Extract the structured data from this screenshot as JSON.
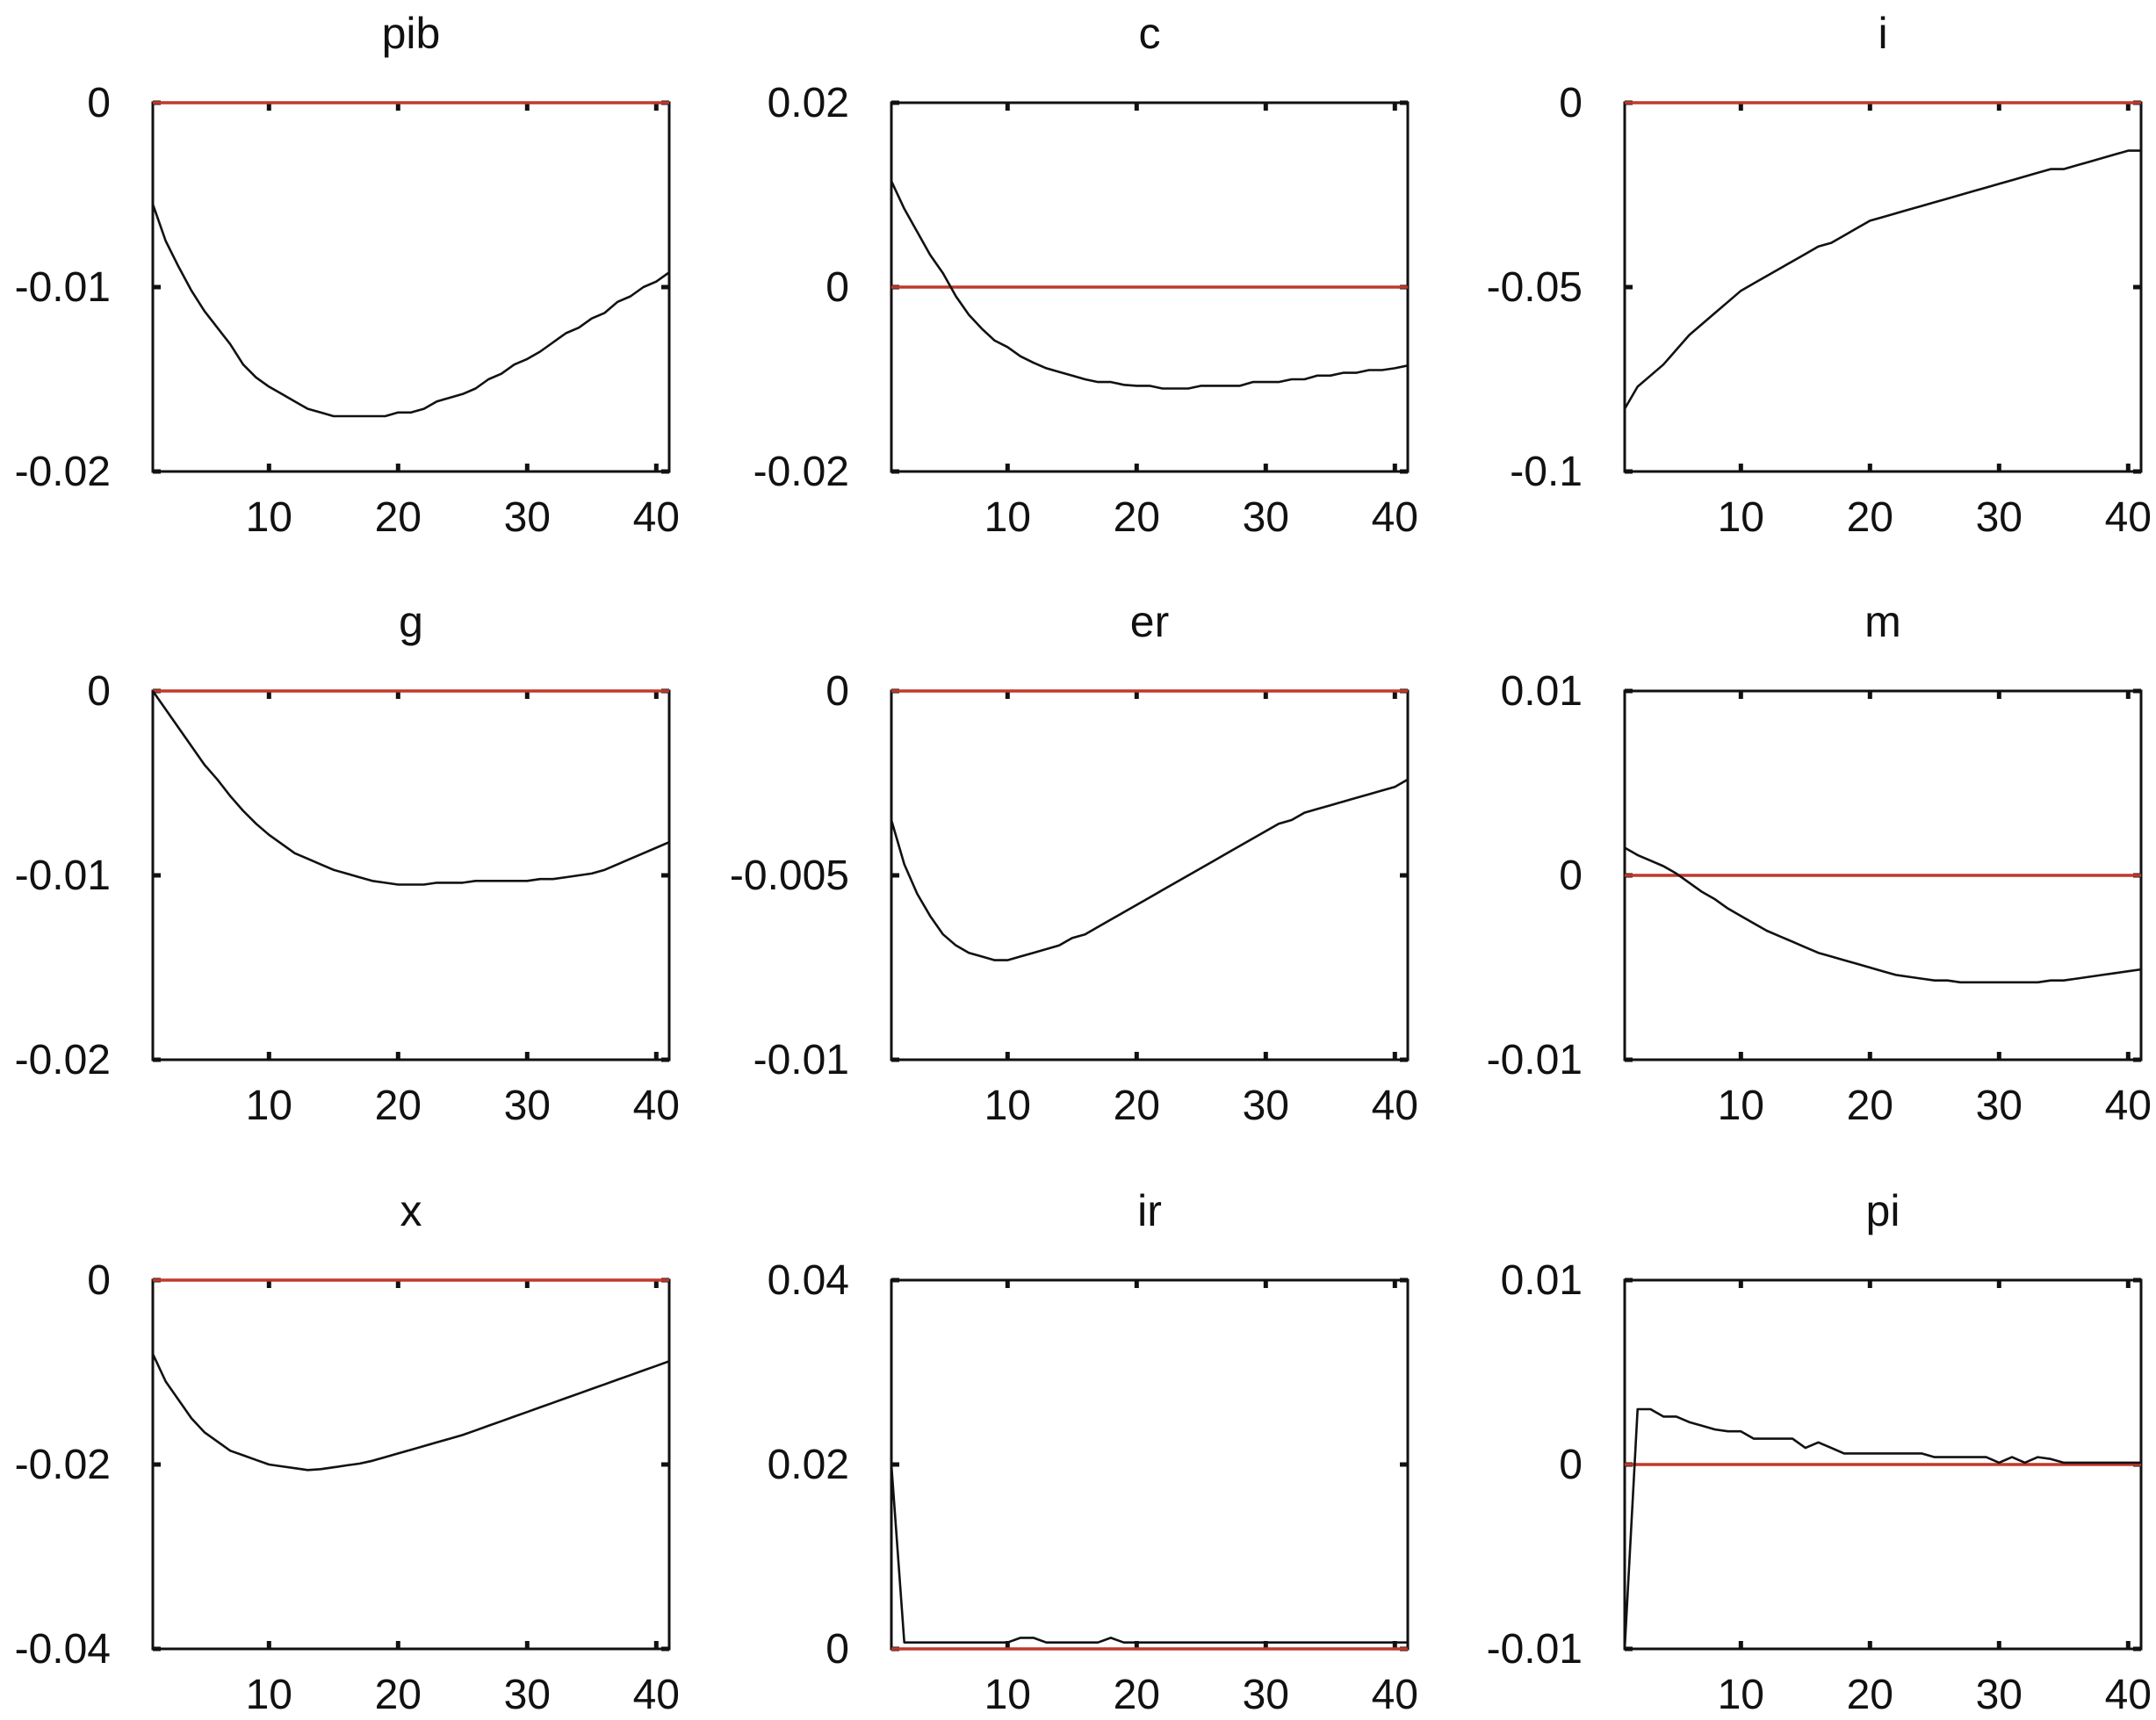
{
  "figure": {
    "zero_line_color": "#c0392b",
    "series_color": "#111111",
    "axis_color": "#111111"
  },
  "chart_data": [
    {
      "type": "line",
      "title": "pib",
      "xlim": [
        1,
        41
      ],
      "ylim": [
        -0.02,
        0
      ],
      "xticks": [
        10,
        20,
        30,
        40
      ],
      "xtick_labels": [
        "10",
        "20",
        "30",
        "40"
      ],
      "yticks": [
        0,
        -0.01,
        -0.02
      ],
      "ytick_labels": [
        "0",
        "-0.01",
        "-0.02"
      ],
      "zero_line": 0,
      "grid": false,
      "series": [
        {
          "x": [
            1,
            2,
            3,
            4,
            5,
            6,
            7,
            8,
            9,
            10,
            11,
            12,
            13,
            14,
            15,
            16,
            17,
            18,
            19,
            20,
            21,
            22,
            23,
            24,
            25,
            26,
            27,
            28,
            29,
            30,
            31,
            32,
            33,
            34,
            35,
            36,
            37,
            38,
            39,
            40,
            41
          ],
          "y": [
            -0.0055,
            -0.0075,
            -0.0089,
            -0.0102,
            -0.0113,
            -0.0122,
            -0.0131,
            -0.0142,
            -0.0149,
            -0.0154,
            -0.0158,
            -0.0162,
            -0.0166,
            -0.0168,
            -0.017,
            -0.017,
            -0.017,
            -0.017,
            -0.017,
            -0.0168,
            -0.0168,
            -0.0166,
            -0.0162,
            -0.016,
            -0.0158,
            -0.0155,
            -0.015,
            -0.0147,
            -0.0142,
            -0.0139,
            -0.0135,
            -0.013,
            -0.0125,
            -0.0122,
            -0.0117,
            -0.0114,
            -0.0108,
            -0.0105,
            -0.01,
            -0.0097,
            -0.0092
          ]
        }
      ]
    },
    {
      "type": "line",
      "title": "c",
      "xlim": [
        1,
        41
      ],
      "ylim": [
        -0.02,
        0.02
      ],
      "xticks": [
        10,
        20,
        30,
        40
      ],
      "xtick_labels": [
        "10",
        "20",
        "30",
        "40"
      ],
      "yticks": [
        0.02,
        0,
        -0.02
      ],
      "ytick_labels": [
        "0.02",
        "0",
        "-0.02"
      ],
      "zero_line": 0,
      "grid": false,
      "series": [
        {
          "x": [
            1,
            2,
            3,
            4,
            5,
            6,
            7,
            8,
            9,
            10,
            11,
            12,
            13,
            14,
            15,
            16,
            17,
            18,
            19,
            20,
            21,
            22,
            23,
            24,
            25,
            26,
            27,
            28,
            29,
            30,
            31,
            32,
            33,
            34,
            35,
            36,
            37,
            38,
            39,
            40,
            41
          ],
          "y": [
            0.0115,
            0.0085,
            0.006,
            0.0035,
            0.0015,
            -0.001,
            -0.003,
            -0.0045,
            -0.0058,
            -0.0065,
            -0.0075,
            -0.0082,
            -0.0088,
            -0.0092,
            -0.0096,
            -0.01,
            -0.0103,
            -0.0103,
            -0.0106,
            -0.0107,
            -0.0107,
            -0.011,
            -0.011,
            -0.011,
            -0.0107,
            -0.0107,
            -0.0107,
            -0.0107,
            -0.0103,
            -0.0103,
            -0.0103,
            -0.01,
            -0.01,
            -0.0096,
            -0.0096,
            -0.0093,
            -0.0093,
            -0.009,
            -0.009,
            -0.0088,
            -0.0085
          ]
        }
      ]
    },
    {
      "type": "line",
      "title": "i",
      "xlim": [
        1,
        41
      ],
      "ylim": [
        -0.1,
        0
      ],
      "xticks": [
        10,
        20,
        30,
        40
      ],
      "xtick_labels": [
        "10",
        "20",
        "30",
        "40"
      ],
      "yticks": [
        0,
        -0.05,
        -0.1
      ],
      "ytick_labels": [
        "0",
        "-0.05",
        "-0.1"
      ],
      "zero_line": 0,
      "grid": false,
      "series": [
        {
          "x": [
            1,
            2,
            3,
            4,
            5,
            6,
            7,
            8,
            9,
            10,
            11,
            12,
            13,
            14,
            15,
            16,
            17,
            18,
            19,
            20,
            21,
            22,
            23,
            24,
            25,
            26,
            27,
            28,
            29,
            30,
            31,
            32,
            33,
            34,
            35,
            36,
            37,
            38,
            39,
            40,
            41
          ],
          "y": [
            -0.083,
            -0.077,
            -0.074,
            -0.071,
            -0.067,
            -0.063,
            -0.06,
            -0.057,
            -0.054,
            -0.051,
            -0.049,
            -0.047,
            -0.045,
            -0.043,
            -0.041,
            -0.039,
            -0.038,
            -0.036,
            -0.034,
            -0.032,
            -0.031,
            -0.03,
            -0.029,
            -0.028,
            -0.027,
            -0.026,
            -0.025,
            -0.024,
            -0.023,
            -0.022,
            -0.021,
            -0.02,
            -0.019,
            -0.018,
            -0.018,
            -0.017,
            -0.016,
            -0.015,
            -0.014,
            -0.013,
            -0.013
          ]
        }
      ]
    },
    {
      "type": "line",
      "title": "g",
      "xlim": [
        1,
        41
      ],
      "ylim": [
        -0.02,
        0
      ],
      "xticks": [
        10,
        20,
        30,
        40
      ],
      "xtick_labels": [
        "10",
        "20",
        "30",
        "40"
      ],
      "yticks": [
        0,
        -0.01,
        -0.02
      ],
      "ytick_labels": [
        "0",
        "-0.01",
        "-0.02"
      ],
      "zero_line": 0,
      "grid": false,
      "series": [
        {
          "x": [
            1,
            2,
            3,
            4,
            5,
            6,
            7,
            8,
            9,
            10,
            11,
            12,
            13,
            14,
            15,
            16,
            17,
            18,
            19,
            20,
            21,
            22,
            23,
            24,
            25,
            26,
            27,
            28,
            29,
            30,
            31,
            32,
            33,
            34,
            35,
            36,
            37,
            38,
            39,
            40,
            41
          ],
          "y": [
            0,
            -0.001,
            -0.002,
            -0.003,
            -0.004,
            -0.0048,
            -0.0057,
            -0.0065,
            -0.0072,
            -0.0078,
            -0.0083,
            -0.0088,
            -0.0091,
            -0.0094,
            -0.0097,
            -0.0099,
            -0.0101,
            -0.0103,
            -0.0104,
            -0.0105,
            -0.0105,
            -0.0105,
            -0.0104,
            -0.0104,
            -0.0104,
            -0.0103,
            -0.0103,
            -0.0103,
            -0.0103,
            -0.0103,
            -0.0102,
            -0.0102,
            -0.0101,
            -0.01,
            -0.0099,
            -0.0097,
            -0.0094,
            -0.0091,
            -0.0088,
            -0.0085,
            -0.0082
          ]
        }
      ]
    },
    {
      "type": "line",
      "title": "er",
      "xlim": [
        1,
        41
      ],
      "ylim": [
        -0.01,
        0
      ],
      "xticks": [
        10,
        20,
        30,
        40
      ],
      "xtick_labels": [
        "10",
        "20",
        "30",
        "40"
      ],
      "yticks": [
        0,
        -0.005,
        -0.01
      ],
      "ytick_labels": [
        "0",
        "-0.005",
        "-0.01"
      ],
      "zero_line": 0,
      "grid": false,
      "series": [
        {
          "x": [
            1,
            2,
            3,
            4,
            5,
            6,
            7,
            8,
            9,
            10,
            11,
            12,
            13,
            14,
            15,
            16,
            17,
            18,
            19,
            20,
            21,
            22,
            23,
            24,
            25,
            26,
            27,
            28,
            29,
            30,
            31,
            32,
            33,
            34,
            35,
            36,
            37,
            38,
            39,
            40,
            41
          ],
          "y": [
            -0.0035,
            -0.0047,
            -0.0055,
            -0.0061,
            -0.0066,
            -0.0069,
            -0.0071,
            -0.0072,
            -0.0073,
            -0.0073,
            -0.0072,
            -0.0071,
            -0.007,
            -0.0069,
            -0.0067,
            -0.0066,
            -0.0064,
            -0.0062,
            -0.006,
            -0.0058,
            -0.0056,
            -0.0054,
            -0.0052,
            -0.005,
            -0.0048,
            -0.0046,
            -0.0044,
            -0.0042,
            -0.004,
            -0.0038,
            -0.0036,
            -0.0035,
            -0.0033,
            -0.0032,
            -0.0031,
            -0.003,
            -0.0029,
            -0.0028,
            -0.0027,
            -0.0026,
            -0.0024
          ]
        }
      ]
    },
    {
      "type": "line",
      "title": "m",
      "xlim": [
        1,
        41
      ],
      "ylim": [
        -0.01,
        0.01
      ],
      "xticks": [
        10,
        20,
        30,
        40
      ],
      "xtick_labels": [
        "10",
        "20",
        "30",
        "40"
      ],
      "yticks": [
        0.01,
        0,
        -0.01
      ],
      "ytick_labels": [
        "0.01",
        "0",
        "-0.01"
      ],
      "zero_line": 0,
      "grid": false,
      "series": [
        {
          "x": [
            1,
            2,
            3,
            4,
            5,
            6,
            7,
            8,
            9,
            10,
            11,
            12,
            13,
            14,
            15,
            16,
            17,
            18,
            19,
            20,
            21,
            22,
            23,
            24,
            25,
            26,
            27,
            28,
            29,
            30,
            31,
            32,
            33,
            34,
            35,
            36,
            37,
            38,
            39,
            40,
            41
          ],
          "y": [
            0.0015,
            0.0011,
            0.0008,
            0.0005,
            0.0001,
            -0.0004,
            -0.0009,
            -0.0013,
            -0.0018,
            -0.0022,
            -0.0026,
            -0.003,
            -0.0033,
            -0.0036,
            -0.0039,
            -0.0042,
            -0.0044,
            -0.0046,
            -0.0048,
            -0.005,
            -0.0052,
            -0.0054,
            -0.0055,
            -0.0056,
            -0.0057,
            -0.0057,
            -0.0058,
            -0.0058,
            -0.0058,
            -0.0058,
            -0.0058,
            -0.0058,
            -0.0058,
            -0.0057,
            -0.0057,
            -0.0056,
            -0.0055,
            -0.0054,
            -0.0053,
            -0.0052,
            -0.0051
          ]
        }
      ]
    },
    {
      "type": "line",
      "title": "x",
      "xlim": [
        1,
        41
      ],
      "ylim": [
        -0.04,
        0
      ],
      "xticks": [
        10,
        20,
        30,
        40
      ],
      "xtick_labels": [
        "10",
        "20",
        "30",
        "40"
      ],
      "yticks": [
        0,
        -0.02,
        -0.04
      ],
      "ytick_labels": [
        "0",
        "-0.02",
        "-0.04"
      ],
      "zero_line": 0,
      "grid": false,
      "series": [
        {
          "x": [
            1,
            2,
            3,
            4,
            5,
            6,
            7,
            8,
            9,
            10,
            11,
            12,
            13,
            14,
            15,
            16,
            17,
            18,
            19,
            20,
            21,
            22,
            23,
            24,
            25,
            26,
            27,
            28,
            29,
            30,
            31,
            32,
            33,
            34,
            35,
            36,
            37,
            38,
            39,
            40,
            41
          ],
          "y": [
            -0.008,
            -0.011,
            -0.013,
            -0.015,
            -0.0165,
            -0.0175,
            -0.0185,
            -0.019,
            -0.0195,
            -0.02,
            -0.0202,
            -0.0204,
            -0.0206,
            -0.0205,
            -0.0203,
            -0.0201,
            -0.0199,
            -0.0196,
            -0.0192,
            -0.0188,
            -0.0184,
            -0.018,
            -0.0176,
            -0.0172,
            -0.0168,
            -0.0163,
            -0.0158,
            -0.0153,
            -0.0148,
            -0.0143,
            -0.0138,
            -0.0133,
            -0.0128,
            -0.0123,
            -0.0118,
            -0.0113,
            -0.0108,
            -0.0103,
            -0.0098,
            -0.0093,
            -0.0088
          ]
        }
      ]
    },
    {
      "type": "line",
      "title": "ir",
      "xlim": [
        1,
        41
      ],
      "ylim": [
        0,
        0.04
      ],
      "xticks": [
        10,
        20,
        30,
        40
      ],
      "xtick_labels": [
        "10",
        "20",
        "30",
        "40"
      ],
      "yticks": [
        0.04,
        0.02,
        0
      ],
      "ytick_labels": [
        "0.04",
        "0.02",
        "0"
      ],
      "zero_line": 0,
      "grid": false,
      "series": [
        {
          "x": [
            1,
            2,
            3,
            4,
            5,
            6,
            7,
            8,
            9,
            10,
            11,
            12,
            13,
            14,
            15,
            16,
            17,
            18,
            19,
            20,
            21,
            22,
            23,
            24,
            25,
            26,
            27,
            28,
            29,
            30,
            31,
            32,
            33,
            34,
            35,
            36,
            37,
            38,
            39,
            40,
            41
          ],
          "y": [
            0.02,
            0.0007,
            0.0007,
            0.0007,
            0.0007,
            0.0007,
            0.0007,
            0.0007,
            0.0007,
            0.0007,
            0.0012,
            0.0012,
            0.0007,
            0.0007,
            0.0007,
            0.0007,
            0.0007,
            0.0012,
            0.0007,
            0.0007,
            0.0007,
            0.0007,
            0.0007,
            0.0007,
            0.0007,
            0.0007,
            0.0007,
            0.0007,
            0.0007,
            0.0007,
            0.0007,
            0.0007,
            0.0007,
            0.0007,
            0.0007,
            0.0007,
            0.0007,
            0.0007,
            0.0007,
            0.0007,
            0.0007
          ]
        }
      ]
    },
    {
      "type": "line",
      "title": "pi",
      "xlim": [
        1,
        41
      ],
      "ylim": [
        -0.01,
        0.01
      ],
      "xticks": [
        10,
        20,
        30,
        40
      ],
      "xtick_labels": [
        "10",
        "20",
        "30",
        "40"
      ],
      "yticks": [
        0.01,
        0,
        -0.01
      ],
      "ytick_labels": [
        "0.01",
        "0",
        "-0.01"
      ],
      "zero_line": 0,
      "grid": false,
      "series": [
        {
          "x": [
            1,
            2,
            3,
            4,
            5,
            6,
            7,
            8,
            9,
            10,
            11,
            12,
            13,
            14,
            15,
            16,
            17,
            18,
            19,
            20,
            21,
            22,
            23,
            24,
            25,
            26,
            27,
            28,
            29,
            30,
            31,
            32,
            33,
            34,
            35,
            36,
            37,
            38,
            39,
            40,
            41
          ],
          "y": [
            -0.01,
            0.003,
            0.003,
            0.0026,
            0.0026,
            0.0023,
            0.0021,
            0.0019,
            0.0018,
            0.0018,
            0.0014,
            0.0014,
            0.0014,
            0.0014,
            0.0009,
            0.0012,
            0.0009,
            0.0006,
            0.0006,
            0.0006,
            0.0006,
            0.0006,
            0.0006,
            0.0006,
            0.0004,
            0.0004,
            0.0004,
            0.0004,
            0.0004,
            0.0001,
            0.0004,
            0.0001,
            0.0004,
            0.0003,
            0.0001,
            0.0001,
            0.0001,
            0.0001,
            0.0001,
            0.0001,
            0.0001
          ]
        }
      ]
    }
  ]
}
